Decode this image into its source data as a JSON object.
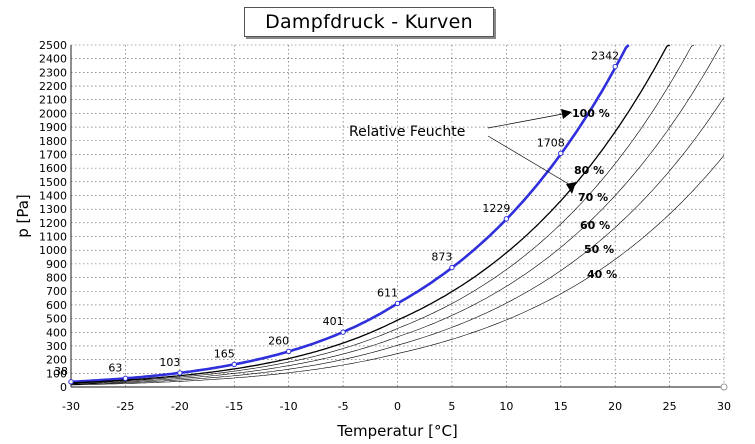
{
  "chart_data": {
    "type": "line",
    "title": "Dampfdruck - Kurven",
    "xlabel": "Temperatur [°C]",
    "ylabel": "p [Pa]",
    "xlim": [
      -30,
      30
    ],
    "ylim": [
      0,
      2500
    ],
    "x_ticks": [
      "-30",
      "-25",
      "-20",
      "-15",
      "-10",
      "-5",
      "0",
      "5",
      "10",
      "15",
      "20",
      "25",
      "30"
    ],
    "y_ticks": [
      "0",
      "100",
      "200",
      "300",
      "400",
      "500",
      "600",
      "700",
      "800",
      "900",
      "1000",
      "1100",
      "1200",
      "1300",
      "1400",
      "1500",
      "1600",
      "1700",
      "1800",
      "1900",
      "2000",
      "2100",
      "2200",
      "2300",
      "2400",
      "2500"
    ],
    "grid": true,
    "saturation_points": {
      "x": [
        -30,
        -25,
        -20,
        -15,
        -10,
        -5,
        0,
        5,
        10,
        15,
        20
      ],
      "y": [
        38,
        63,
        103,
        165,
        260,
        401,
        611,
        873,
        1229,
        1708,
        2342
      ],
      "labels": [
        "38",
        "63",
        "103",
        "165",
        "260",
        "401",
        "611",
        "873",
        "1229",
        "1708",
        "2342"
      ]
    },
    "series": [
      {
        "name": "100 %",
        "fraction": 1.0,
        "color": "#2f2fdc"
      },
      {
        "name": "80 %",
        "fraction": 0.8,
        "color": "#000000"
      },
      {
        "name": "70 %",
        "fraction": 0.7,
        "color": "#000000"
      },
      {
        "name": "60 %",
        "fraction": 0.6,
        "color": "#000000"
      },
      {
        "name": "50 %",
        "fraction": 0.5,
        "color": "#000000"
      },
      {
        "name": "40 %",
        "fraction": 0.4,
        "color": "#000000"
      }
    ],
    "annotation": "Relative Feuchte"
  }
}
